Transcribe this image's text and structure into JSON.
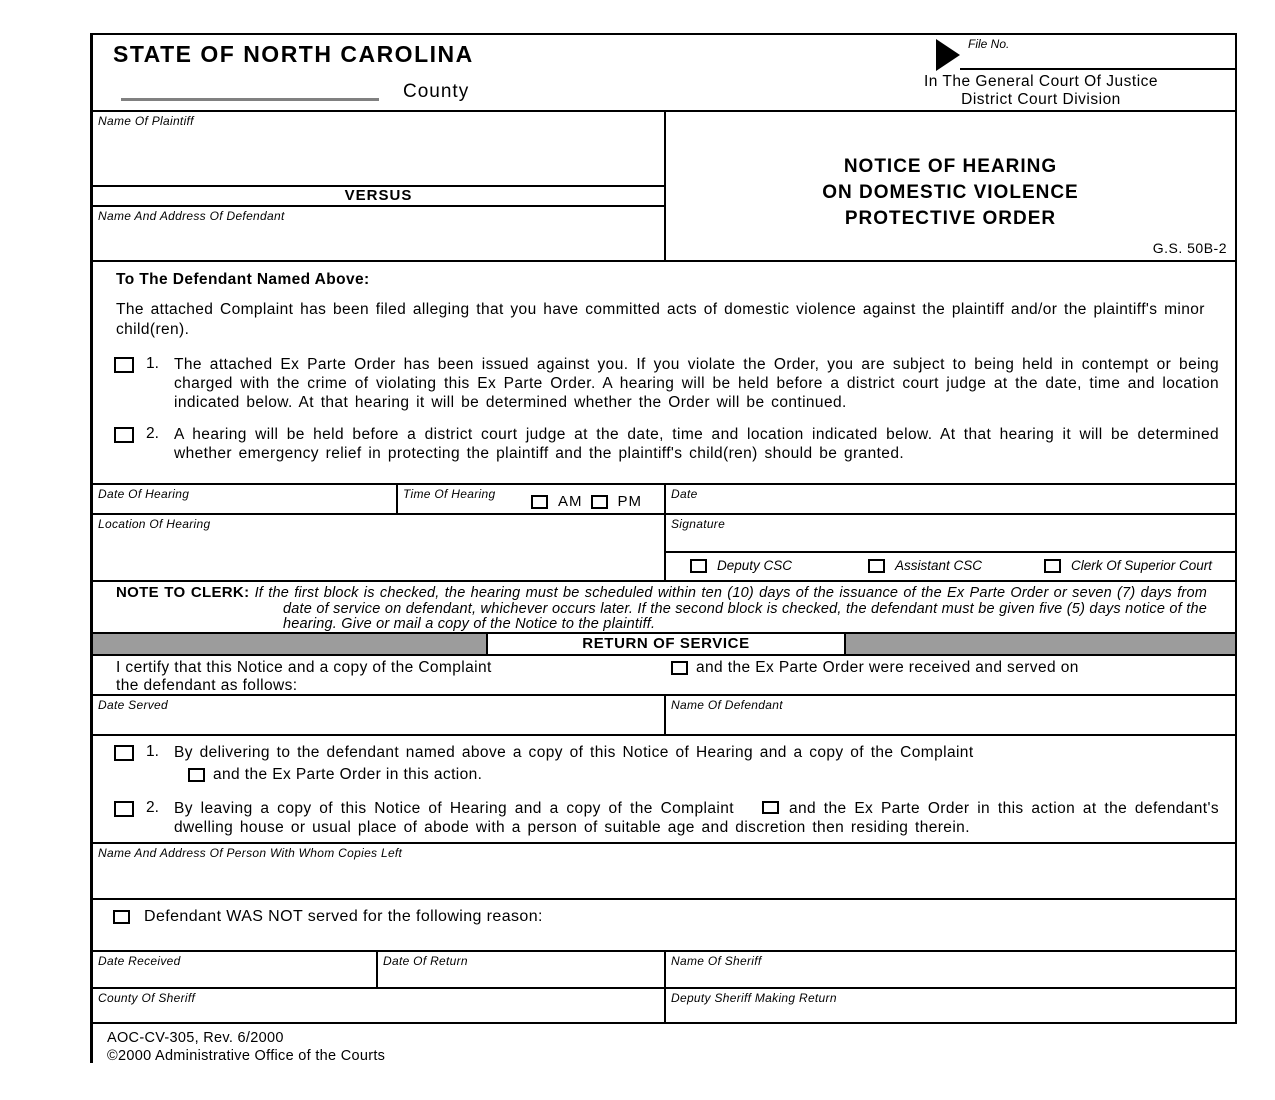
{
  "header": {
    "state_title": "STATE OF NORTH CAROLINA",
    "county_label": "County",
    "file_no_label": "File No.",
    "court_line1": "In The General Court Of Justice",
    "court_line2": "District Court Division"
  },
  "caption": {
    "plaintiff_label": "Name Of Plaintiff",
    "versus": "VERSUS",
    "defendant_label": "Name And Address Of Defendant",
    "title1": "NOTICE OF HEARING",
    "title2": "ON DOMESTIC VIOLENCE",
    "title3": "PROTECTIVE ORDER",
    "statute": "G.S. 50B-2"
  },
  "notice": {
    "heading": "To The Defendant Named Above:",
    "intro": "The attached Complaint has been filed alleging that you have committed acts of domestic violence against the plaintiff and/or the plaintiff's minor child(ren).",
    "item1_no": "1.",
    "item1": "The attached Ex Parte Order has been issued against you.  If you violate the Order, you are subject to being held in contempt or being charged with the crime of violating this Ex Parte Order.  A hearing will be held before a district court judge at the date, time and location indicated below.  At that hearing it will be determined whether the Order will be continued.",
    "item2_no": "2.",
    "item2": "A hearing will be held before a district court judge at the date, time and location indicated below.  At that hearing it will be determined whether emergency relief in protecting the plaintiff and the plaintiff's child(ren) should be granted."
  },
  "hearing": {
    "date_of_hearing": "Date Of Hearing",
    "time_of_hearing": "Time Of Hearing",
    "am": "AM",
    "pm": "PM",
    "date": "Date",
    "location": "Location Of Hearing",
    "signature": "Signature",
    "deputy_csc": "Deputy CSC",
    "assistant_csc": "Assistant CSC",
    "clerk": "Clerk Of Superior Court"
  },
  "note": {
    "label": "NOTE TO CLERK:",
    "text": "If the first block is checked, the hearing must be scheduled within ten (10) days of the issuance of the Ex Parte Order or seven (7) days from date of service on defendant, whichever occurs later.  If the second block is checked, the defendant must be given five (5) days notice of the hearing.  Give or mail a copy of the Notice to the plaintiff."
  },
  "ros": {
    "band": "RETURN OF SERVICE",
    "certify1": "I certify that this Notice and a copy of the Complaint",
    "certify2": "the defendant as follows:",
    "ex_parte": "and the Ex Parte Order were received and served on",
    "date_served": "Date Served",
    "name_of_defendant": "Name Of Defendant",
    "i1_no": "1.",
    "i1": "By delivering to the defendant named above a copy of this Notice of Hearing and a copy of the Complaint",
    "i1_sub": "and the Ex Parte Order in this action.",
    "i2_no": "2.",
    "i2a": "By leaving a copy of this Notice of Hearing and a copy of the Complaint",
    "i2b": "and the Ex Parte Order in this action at the defendant's dwelling house or usual place of abode with a person of suitable age and discretion then residing therein.",
    "person": "Name And Address Of Person With Whom Copies Left",
    "not_served": "Defendant WAS NOT served for the following reason:",
    "date_received": "Date Received",
    "date_of_return": "Date Of Return",
    "name_of_sheriff": "Name Of Sheriff",
    "county_of_sheriff": "County Of Sheriff",
    "deputy_sheriff": "Deputy Sheriff Making Return"
  },
  "footer": {
    "form_no": "AOC-CV-305, Rev. 6/2000",
    "copyright": "©2000 Administrative Office of the Courts"
  },
  "icons": {
    "file_no_pointer": "right-pointing-triangle"
  },
  "colors": {
    "band_gray": "#9c9c9c",
    "county_line_gray": "#808080",
    "ink": "#000000"
  }
}
